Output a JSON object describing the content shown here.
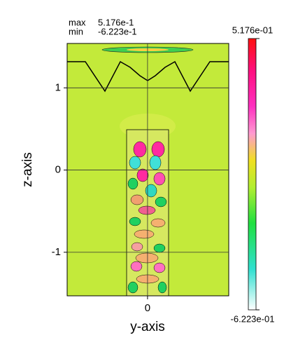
{
  "chart_data": {
    "type": "contour",
    "xlabel": "y-axis",
    "ylabel": "z-axis",
    "xlim": [
      -0.98,
      0.99
    ],
    "ylim": [
      -1.53,
      1.54
    ],
    "xticks": [
      0
    ],
    "yticks": [
      -1,
      0,
      1
    ],
    "grid": true,
    "annotations": [
      {
        "label": "max",
        "text": "5.176e-1"
      },
      {
        "label": "min",
        "text": "-6.223e-1"
      }
    ],
    "colorbar": {
      "ticks": [
        {
          "value": 0.5176,
          "label": "5.176e-01"
        },
        {
          "value": -0.6223,
          "label": "-6.223e-01"
        }
      ]
    }
  }
}
